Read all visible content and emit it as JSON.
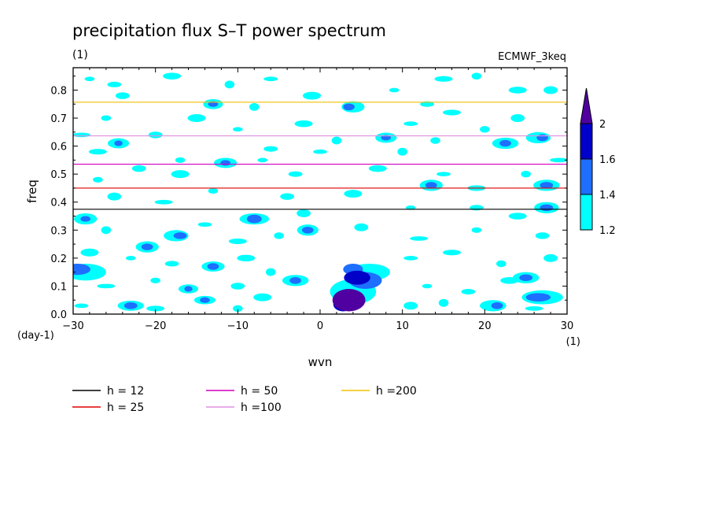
{
  "chart_data": {
    "type": "heatmap",
    "title": "precipitation flux S–T power spectrum",
    "subtitle_left": "(1)",
    "subtitle_right": "ECMWF_3keq",
    "xlabel": "wvn",
    "ylabel": "freq",
    "x_unit": "(1)",
    "y_unit": "(day-1)",
    "xlim": [
      -30,
      30
    ],
    "ylim": [
      0,
      0.88
    ],
    "x_ticks": [
      -30,
      -20,
      -10,
      0,
      10,
      20,
      30
    ],
    "x_tick_labels": [
      "−30",
      "−20",
      "−10",
      "0",
      "10",
      "20",
      "30"
    ],
    "y_ticks": [
      0,
      0.1,
      0.2,
      0.3,
      0.4,
      0.5,
      0.6,
      0.7,
      0.8
    ],
    "y_tick_labels": [
      "0.0",
      "0.1",
      "0.2",
      "0.3",
      "0.4",
      "0.5",
      "0.6",
      "0.7",
      "0.8"
    ],
    "colorbar": {
      "levels": [
        1.2,
        1.4,
        1.6,
        2
      ],
      "level_labels": [
        "1.2",
        "1.4",
        "1.6",
        "2"
      ],
      "colors": [
        "#00ffff",
        "#1e6eff",
        "#0000c8",
        "#5000a0"
      ]
    },
    "dispersion_curves": [
      {
        "label": "h = 12",
        "h": 12,
        "color": "#000000"
      },
      {
        "label": "h = 25",
        "h": 25,
        "color": "#e00000"
      },
      {
        "label": "h = 50",
        "h": 50,
        "color": "#d000c0"
      },
      {
        "label": "h =100",
        "h": 100,
        "color": "#e090e0"
      },
      {
        "label": "h =200",
        "h": 200,
        "color": "#f0c000"
      }
    ],
    "blobs": [
      {
        "x": 3.5,
        "y": 0.05,
        "rx": 2.0,
        "ry": 0.04,
        "level": 4
      },
      {
        "x": 2.8,
        "y": 0.035,
        "rx": 1.2,
        "ry": 0.025,
        "level": 3
      },
      {
        "x": 4.5,
        "y": 0.13,
        "rx": 1.6,
        "ry": 0.025,
        "level": 3
      },
      {
        "x": 5.5,
        "y": 0.12,
        "rx": 2.0,
        "ry": 0.03,
        "level": 2
      },
      {
        "x": 4.0,
        "y": 0.16,
        "rx": 1.2,
        "ry": 0.02,
        "level": 2
      },
      {
        "x": 4.0,
        "y": 0.08,
        "rx": 2.8,
        "ry": 0.045,
        "level": 1
      },
      {
        "x": 6.0,
        "y": 0.15,
        "rx": 2.5,
        "ry": 0.03,
        "level": 1
      },
      {
        "x": -29.5,
        "y": 0.16,
        "rx": 1.6,
        "ry": 0.02,
        "level": 2
      },
      {
        "x": -28.5,
        "y": 0.15,
        "rx": 2.5,
        "ry": 0.03,
        "level": 1
      },
      {
        "x": -17.0,
        "y": 0.28,
        "rx": 0.8,
        "ry": 0.012,
        "level": 2
      },
      {
        "x": -17.5,
        "y": 0.28,
        "rx": 1.5,
        "ry": 0.02,
        "level": 1
      },
      {
        "x": -21.0,
        "y": 0.24,
        "rx": 0.7,
        "ry": 0.012,
        "level": 2
      },
      {
        "x": -21.0,
        "y": 0.24,
        "rx": 1.4,
        "ry": 0.02,
        "level": 1
      },
      {
        "x": -8.0,
        "y": 0.34,
        "rx": 0.9,
        "ry": 0.015,
        "level": 2
      },
      {
        "x": -8.0,
        "y": 0.34,
        "rx": 1.8,
        "ry": 0.02,
        "level": 1
      },
      {
        "x": -13.0,
        "y": 0.17,
        "rx": 0.7,
        "ry": 0.012,
        "level": 2
      },
      {
        "x": -13.0,
        "y": 0.17,
        "rx": 1.4,
        "ry": 0.018,
        "level": 1
      },
      {
        "x": -3.0,
        "y": 0.12,
        "rx": 0.7,
        "ry": 0.012,
        "level": 2
      },
      {
        "x": -3.0,
        "y": 0.12,
        "rx": 1.6,
        "ry": 0.02,
        "level": 1
      },
      {
        "x": -23.0,
        "y": 0.03,
        "rx": 0.8,
        "ry": 0.012,
        "level": 2
      },
      {
        "x": -23.0,
        "y": 0.03,
        "rx": 1.6,
        "ry": 0.018,
        "level": 1
      },
      {
        "x": -14.0,
        "y": 0.05,
        "rx": 0.6,
        "ry": 0.01,
        "level": 2
      },
      {
        "x": -14.0,
        "y": 0.05,
        "rx": 1.3,
        "ry": 0.015,
        "level": 1
      },
      {
        "x": -1.5,
        "y": 0.3,
        "rx": 0.7,
        "ry": 0.012,
        "level": 2
      },
      {
        "x": -1.5,
        "y": 0.3,
        "rx": 1.3,
        "ry": 0.02,
        "level": 1
      },
      {
        "x": 21.5,
        "y": 0.03,
        "rx": 0.7,
        "ry": 0.012,
        "level": 2
      },
      {
        "x": 21.0,
        "y": 0.03,
        "rx": 1.6,
        "ry": 0.02,
        "level": 1
      },
      {
        "x": 26.5,
        "y": 0.06,
        "rx": 1.5,
        "ry": 0.015,
        "level": 2
      },
      {
        "x": 27.0,
        "y": 0.06,
        "rx": 2.5,
        "ry": 0.025,
        "level": 1
      },
      {
        "x": 25.0,
        "y": 0.13,
        "rx": 0.8,
        "ry": 0.012,
        "level": 2
      },
      {
        "x": 25.0,
        "y": 0.13,
        "rx": 1.6,
        "ry": 0.02,
        "level": 1
      },
      {
        "x": 27.5,
        "y": 0.38,
        "rx": 0.8,
        "ry": 0.012,
        "level": 2
      },
      {
        "x": 27.5,
        "y": 0.38,
        "rx": 1.5,
        "ry": 0.02,
        "level": 1
      },
      {
        "x": 27.0,
        "y": 0.63,
        "rx": 0.7,
        "ry": 0.012,
        "level": 2
      },
      {
        "x": 26.5,
        "y": 0.63,
        "rx": 1.5,
        "ry": 0.02,
        "level": 1
      },
      {
        "x": 22.5,
        "y": 0.61,
        "rx": 0.7,
        "ry": 0.012,
        "level": 2
      },
      {
        "x": 22.5,
        "y": 0.61,
        "rx": 1.6,
        "ry": 0.02,
        "level": 1
      },
      {
        "x": 27.5,
        "y": 0.46,
        "rx": 0.8,
        "ry": 0.012,
        "level": 2
      },
      {
        "x": 27.5,
        "y": 0.46,
        "rx": 1.6,
        "ry": 0.02,
        "level": 1
      },
      {
        "x": 13.5,
        "y": 0.46,
        "rx": 0.7,
        "ry": 0.012,
        "level": 2
      },
      {
        "x": 13.5,
        "y": 0.46,
        "rx": 1.4,
        "ry": 0.02,
        "level": 1
      },
      {
        "x": 3.5,
        "y": 0.74,
        "rx": 0.7,
        "ry": 0.012,
        "level": 2
      },
      {
        "x": 4.0,
        "y": 0.74,
        "rx": 1.4,
        "ry": 0.02,
        "level": 1
      },
      {
        "x": -13.0,
        "y": 0.75,
        "rx": 0.6,
        "ry": 0.01,
        "level": 2
      },
      {
        "x": -13.0,
        "y": 0.75,
        "rx": 1.2,
        "ry": 0.018,
        "level": 1
      },
      {
        "x": -11.5,
        "y": 0.54,
        "rx": 0.6,
        "ry": 0.01,
        "level": 2
      },
      {
        "x": -11.5,
        "y": 0.54,
        "rx": 1.4,
        "ry": 0.018,
        "level": 1
      },
      {
        "x": -24.5,
        "y": 0.61,
        "rx": 0.5,
        "ry": 0.01,
        "level": 2
      },
      {
        "x": -24.5,
        "y": 0.61,
        "rx": 1.3,
        "ry": 0.018,
        "level": 1
      },
      {
        "x": -28.5,
        "y": 0.34,
        "rx": 0.6,
        "ry": 0.01,
        "level": 2
      },
      {
        "x": -28.5,
        "y": 0.34,
        "rx": 1.4,
        "ry": 0.02,
        "level": 1
      },
      {
        "x": 8.0,
        "y": 0.63,
        "rx": 0.6,
        "ry": 0.01,
        "level": 2
      },
      {
        "x": 8.0,
        "y": 0.63,
        "rx": 1.3,
        "ry": 0.018,
        "level": 1
      },
      {
        "x": -16.0,
        "y": 0.09,
        "rx": 0.5,
        "ry": 0.01,
        "level": 2
      },
      {
        "x": -16.0,
        "y": 0.09,
        "rx": 1.2,
        "ry": 0.016,
        "level": 1
      }
    ],
    "noise_blobs": [
      [
        -28,
        0.84
      ],
      [
        -25,
        0.82
      ],
      [
        -18,
        0.85
      ],
      [
        -11,
        0.82
      ],
      [
        -6,
        0.84
      ],
      [
        15,
        0.84
      ],
      [
        19,
        0.85
      ],
      [
        28,
        0.8
      ],
      [
        -29,
        0.64
      ],
      [
        -26,
        0.7
      ],
      [
        -20,
        0.64
      ],
      [
        -15,
        0.7
      ],
      [
        -10,
        0.66
      ],
      [
        -6,
        0.59
      ],
      [
        -2,
        0.68
      ],
      [
        2,
        0.62
      ],
      [
        11,
        0.68
      ],
      [
        16,
        0.72
      ],
      [
        20,
        0.66
      ],
      [
        24,
        0.7
      ],
      [
        29,
        0.55
      ],
      [
        -27,
        0.48
      ],
      [
        -22,
        0.52
      ],
      [
        -17,
        0.5
      ],
      [
        -7,
        0.55
      ],
      [
        -3,
        0.5
      ],
      [
        7,
        0.52
      ],
      [
        10,
        0.58
      ],
      [
        15,
        0.5
      ],
      [
        19,
        0.45
      ],
      [
        25,
        0.5
      ],
      [
        -25,
        0.42
      ],
      [
        -19,
        0.4
      ],
      [
        -13,
        0.44
      ],
      [
        -4,
        0.42
      ],
      [
        4,
        0.43
      ],
      [
        11,
        0.38
      ],
      [
        19,
        0.38
      ],
      [
        24,
        0.35
      ],
      [
        -26,
        0.3
      ],
      [
        -14,
        0.32
      ],
      [
        -10,
        0.26
      ],
      [
        -5,
        0.28
      ],
      [
        5,
        0.31
      ],
      [
        12,
        0.27
      ],
      [
        19,
        0.3
      ],
      [
        27,
        0.28
      ],
      [
        -28,
        0.22
      ],
      [
        -23,
        0.2
      ],
      [
        -18,
        0.18
      ],
      [
        -9,
        0.2
      ],
      [
        -6,
        0.15
      ],
      [
        11,
        0.2
      ],
      [
        16,
        0.22
      ],
      [
        22,
        0.18
      ],
      [
        28,
        0.2
      ],
      [
        -26,
        0.1
      ],
      [
        -20,
        0.12
      ],
      [
        -10,
        0.1
      ],
      [
        -7,
        0.06
      ],
      [
        13,
        0.1
      ],
      [
        18,
        0.08
      ],
      [
        23,
        0.12
      ],
      [
        15,
        0.04
      ],
      [
        -29,
        0.03
      ],
      [
        -20,
        0.02
      ],
      [
        -10,
        0.02
      ],
      [
        11,
        0.03
      ],
      [
        26,
        0.02
      ],
      [
        -17,
        0.55
      ],
      [
        -24,
        0.78
      ],
      [
        -1,
        0.78
      ],
      [
        9,
        0.8
      ],
      [
        13,
        0.75
      ],
      [
        24,
        0.8
      ],
      [
        -8,
        0.74
      ],
      [
        0,
        0.58
      ],
      [
        -27,
        0.58
      ],
      [
        14,
        0.62
      ],
      [
        -2,
        0.36
      ]
    ]
  }
}
